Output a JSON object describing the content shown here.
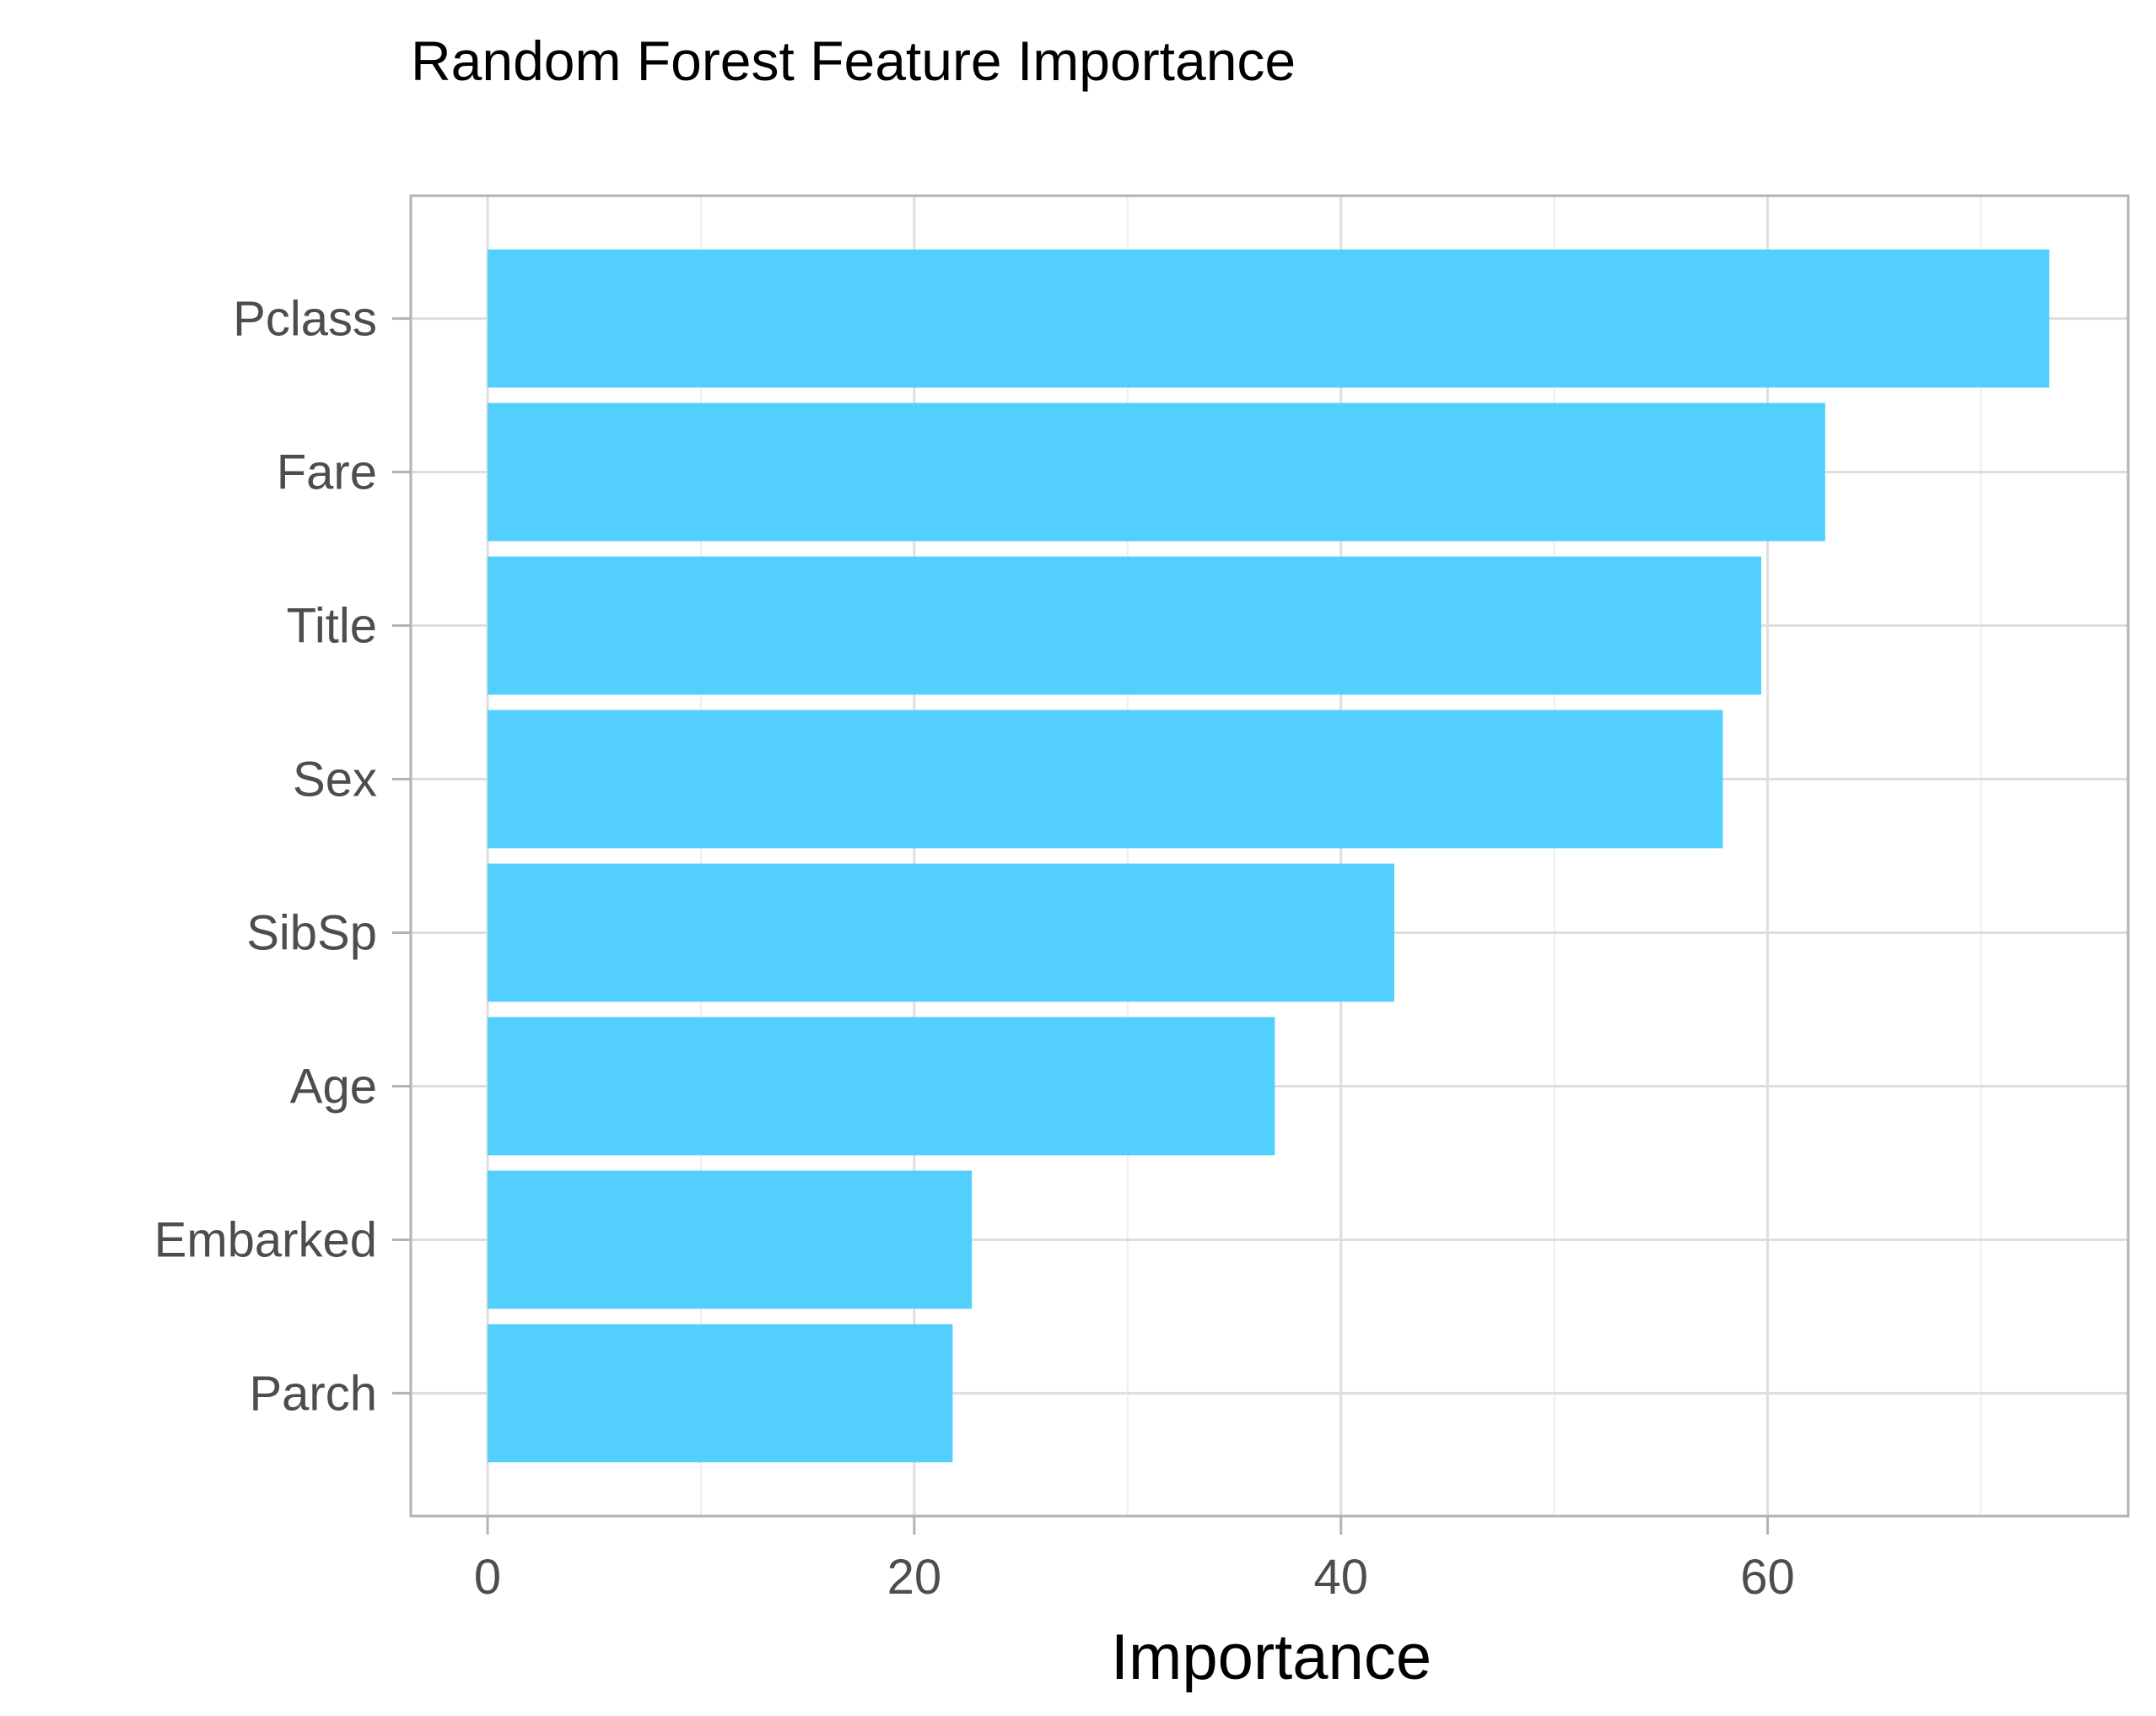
{
  "chart_data": {
    "type": "bar",
    "orientation": "horizontal",
    "title": "Random Forest Feature Importance",
    "xlabel": "Importance",
    "ylabel": "",
    "categories": [
      "Pclass",
      "Fare",
      "Title",
      "Sex",
      "SibSp",
      "Age",
      "Embarked",
      "Parch"
    ],
    "values": [
      73.2,
      62.7,
      59.7,
      57.9,
      42.5,
      36.9,
      22.7,
      21.8
    ],
    "xlim": [
      -3.6,
      76.9
    ],
    "xticks": [
      "0",
      "20",
      "40",
      "60"
    ],
    "grid": true,
    "legend": "none",
    "colors": {
      "bar": "#53cffe",
      "grid_major": "#dedede",
      "grid_minor": "#eeeeee",
      "panel_border": "#b3b3b3",
      "tick": "#b3b3b3"
    }
  }
}
